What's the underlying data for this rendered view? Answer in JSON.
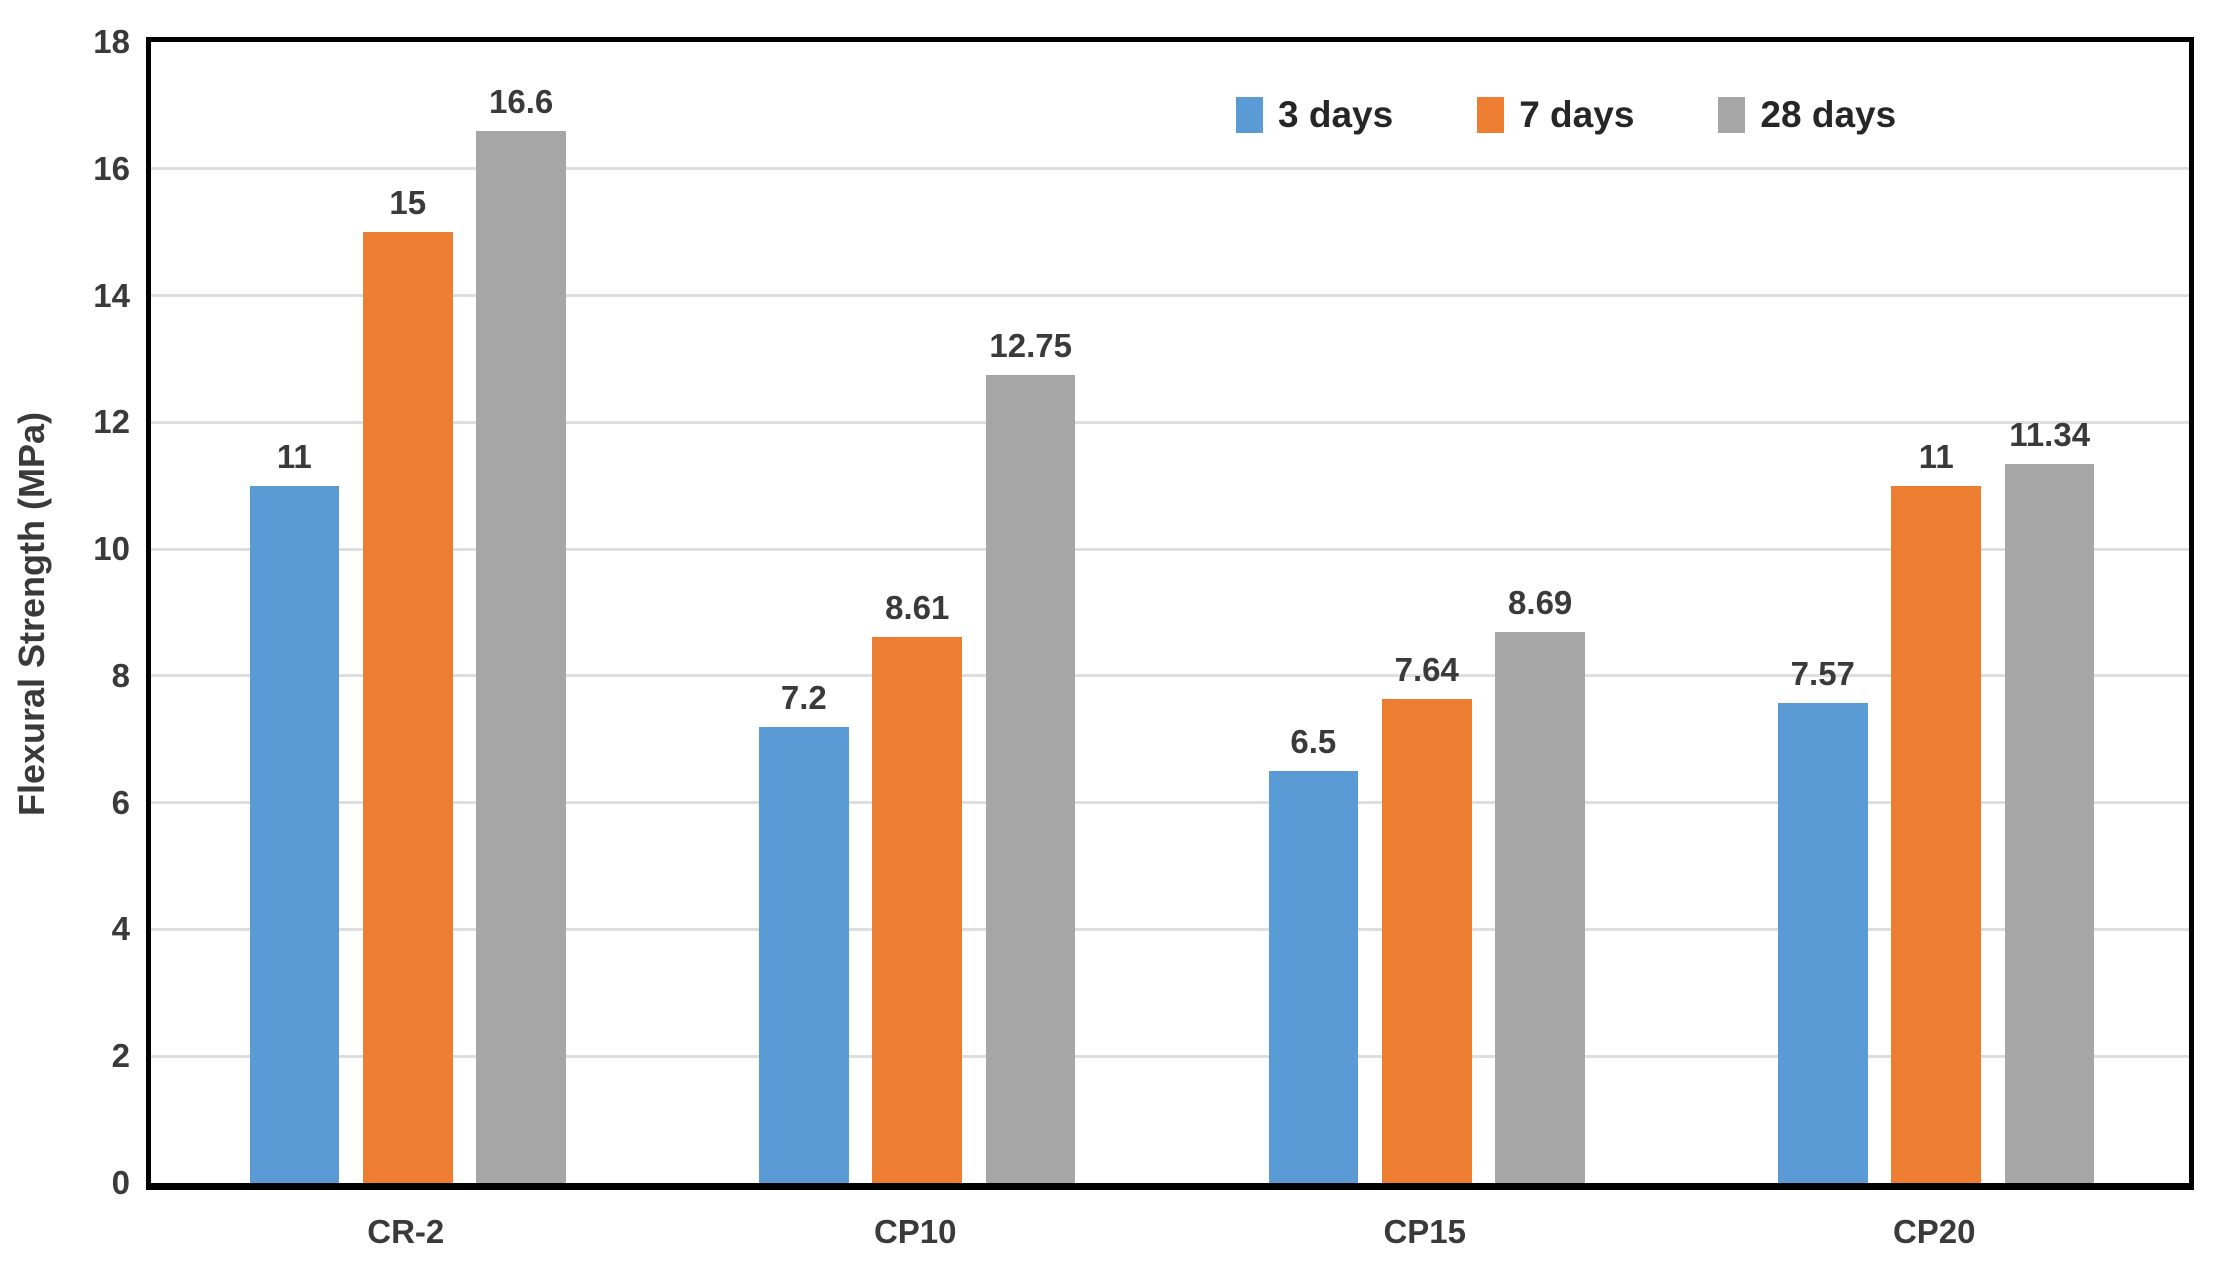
{
  "chart_data": {
    "type": "bar",
    "title": "",
    "xlabel": "",
    "ylabel": "Flexural Strength (MPa)",
    "ylim": [
      0,
      18
    ],
    "ytick_step": 2,
    "grid": true,
    "legend_position": "top-right-inside",
    "categories": [
      "CR-2",
      "CP10",
      "CP15",
      "CP20"
    ],
    "series": [
      {
        "name": "3 days",
        "color": "#5B9BD5",
        "values": [
          11,
          7.2,
          6.5,
          7.57
        ]
      },
      {
        "name": "7 days",
        "color": "#ED7D31",
        "values": [
          15,
          8.61,
          7.64,
          11
        ]
      },
      {
        "name": "28 days",
        "color": "#A6A6A6",
        "values": [
          16.6,
          12.75,
          8.69,
          11.34
        ]
      }
    ],
    "colors": {
      "text": "#3a3a3a",
      "gridline": "#dedede",
      "axis_border": "#000000",
      "background": "#ffffff"
    }
  }
}
